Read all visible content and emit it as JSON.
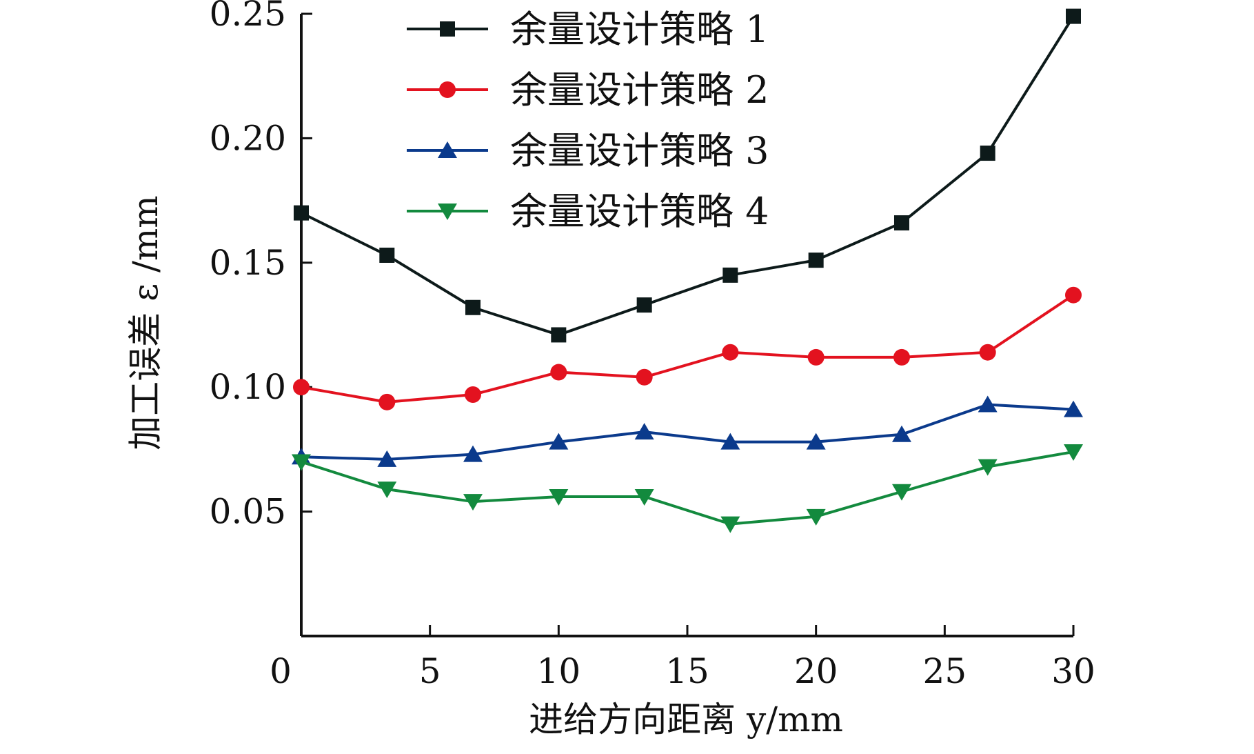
{
  "chart_data": {
    "type": "line",
    "xlabel": "进给方向距离 y/mm",
    "ylabel": "加工误差 ε /mm",
    "xlim": [
      0,
      30
    ],
    "ylim": [
      0,
      0.25
    ],
    "x_ticks": [
      "0",
      "5",
      "10",
      "15",
      "20",
      "25",
      "30"
    ],
    "y_ticks": [
      "0.05",
      "0.10",
      "0.15",
      "0.20",
      "0.25"
    ],
    "legend_position": "top-center",
    "x": [
      0,
      3.33,
      6.67,
      10,
      13.33,
      16.67,
      20,
      23.33,
      26.67,
      30
    ],
    "series": [
      {
        "name": "余量设计策略 1",
        "color": "#0d1a1a",
        "marker": "square",
        "values": [
          0.17,
          0.153,
          0.132,
          0.121,
          0.133,
          0.145,
          0.151,
          0.166,
          0.194,
          0.249
        ]
      },
      {
        "name": "余量设计策略 2",
        "color": "#e3121f",
        "marker": "circle",
        "values": [
          0.1,
          0.094,
          0.097,
          0.106,
          0.104,
          0.114,
          0.112,
          0.112,
          0.114,
          0.137
        ]
      },
      {
        "name": "余量设计策略 3",
        "color": "#0b3a8c",
        "marker": "triangle-up",
        "values": [
          0.072,
          0.071,
          0.073,
          0.078,
          0.082,
          0.078,
          0.078,
          0.081,
          0.093,
          0.091
        ]
      },
      {
        "name": "余量设计策略 4",
        "color": "#138a3e",
        "marker": "triangle-down",
        "values": [
          0.07,
          0.059,
          0.054,
          0.056,
          0.056,
          0.045,
          0.048,
          0.058,
          0.068,
          0.074
        ]
      }
    ]
  }
}
